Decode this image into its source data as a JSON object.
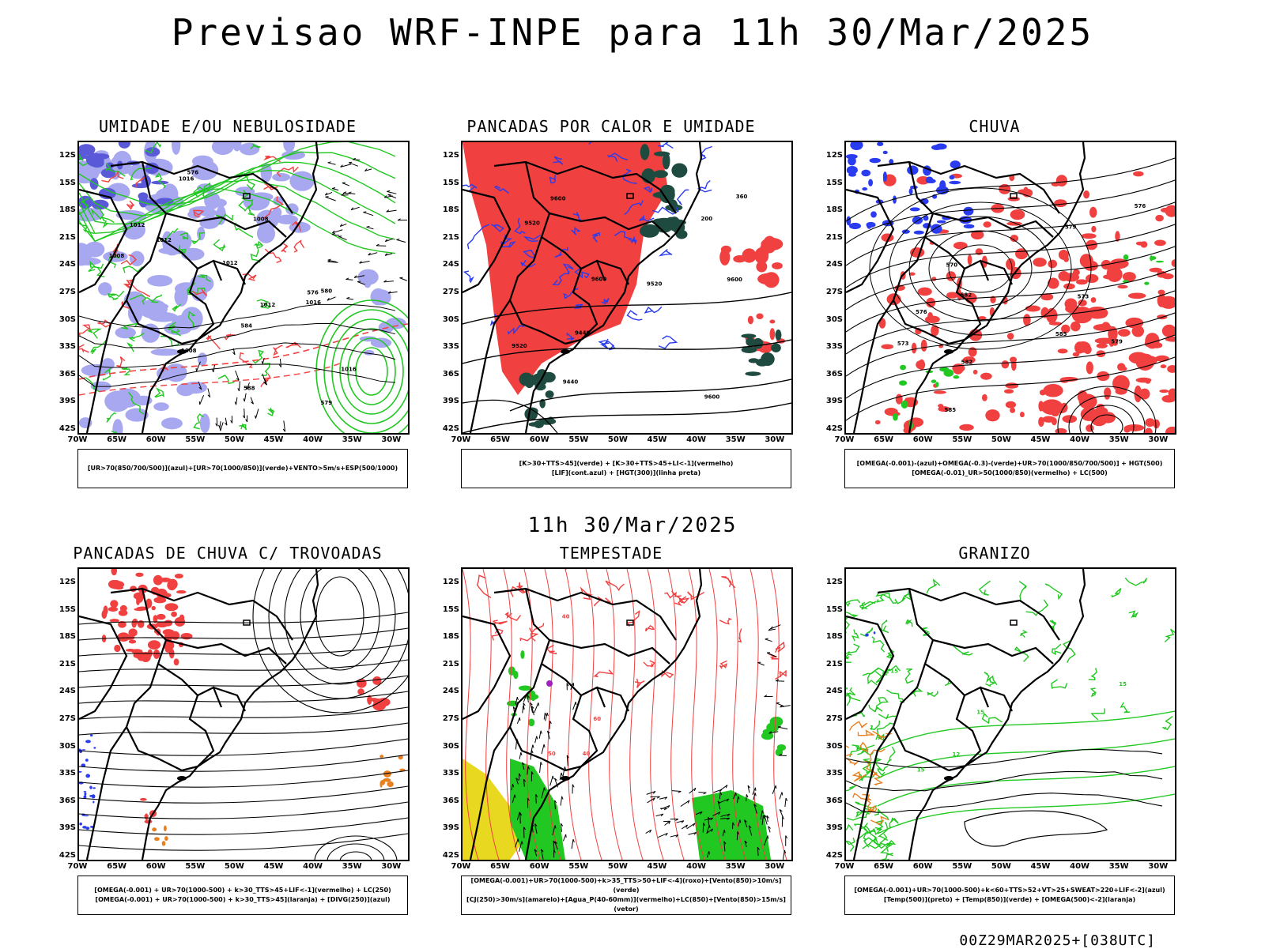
{
  "title": "Previsao WRF-INPE  para 11h 30/Mar/2025",
  "mid_date": "11h 30/Mar/2025",
  "footer": "00Z29MAR2025+[038UTC]",
  "latitudes": [
    "12S",
    "15S",
    "18S",
    "21S",
    "24S",
    "27S",
    "30S",
    "33S",
    "36S",
    "39S",
    "42S"
  ],
  "longitudes": [
    "70W",
    "65W",
    "60W",
    "55W",
    "50W",
    "45W",
    "40W",
    "35W",
    "30W"
  ],
  "panels": [
    {
      "id": "umidade",
      "title": "UMIDADE E/OU NEBULOSIDADE",
      "legend": [
        "[UR>70(850/700/500)](azul)+[UR>70(1000/850)](verde)+VENTO>5m/s+ESP(500/1000)"
      ],
      "contour_labels": [
        "1012",
        "1012",
        "1012",
        "1016",
        "1008",
        "1008",
        "1008",
        "1012",
        "1016",
        "1016",
        "576",
        "576",
        "579",
        "580",
        "584",
        "588"
      ]
    },
    {
      "id": "pancadas_calor",
      "title": "PANCADAS POR CALOR E UMIDADE",
      "legend": [
        "[K>30+TTS>45](verde) + [K>30+TTS>45+LI<-1](vermelho)",
        "[LIF](cont.azul) + [HGT(300)](linha preta)"
      ],
      "contour_labels": [
        "9600",
        "9600",
        "9600",
        "9600",
        "9520",
        "9520",
        "9520",
        "9440",
        "9440",
        "360",
        "200"
      ]
    },
    {
      "id": "chuva",
      "title": "CHUVA",
      "legend": [
        "[OMEGA(-0.001)-(azul)+OMEGA(-0.3)-(verde)+UR>70(1000/850/700/500)] + HGT(500)",
        "[OMEGA(-0.01)_UR>50(1000/850)(vermelho) + LC(500)"
      ],
      "contour_labels": [
        "585",
        "585",
        "582",
        "582",
        "579",
        "579",
        "576",
        "576",
        "573",
        "573",
        "570"
      ]
    },
    {
      "id": "pancadas_trovoadas",
      "title": "PANCADAS DE CHUVA C/ TROVOADAS",
      "legend": [
        "[OMEGA(-0.001) + UR>70(1000-500) + k>30_TTS>45+LIF<-1](vermelho) + LC(250)",
        "[OMEGA(-0.001) + UR>70(1000-500) + k>30_TTS>45](laranja) + [DIVG(250)](azul)"
      ],
      "contour_labels": []
    },
    {
      "id": "tempestade",
      "title": "TEMPESTADE",
      "legend": [
        "[OMEGA(-0.001)+UR>70(1000-500)+k>35_TTS>50+LIF<-4](roxo)+[Vento(850)>10m/s](verde)",
        "[CJ(250)>30m/s](amarelo)+[Agua_P(40-60mm)](vermelho)+LC(850)+[Vento(850)>15m/s](vetor)"
      ],
      "contour_labels": [
        "40",
        "40",
        "50",
        "60"
      ]
    },
    {
      "id": "granizo",
      "title": "GRANIZO",
      "legend": [
        "[OMEGA(-0.001)+UR>70(1000-500)+k<60+TTS>52+VT>25+SWEAT>220+LIF<-2](azul)",
        "[Temp(500)](preto) + [Temp(850)](verde) + [OMEGA(500)<-2](laranja)"
      ],
      "contour_labels": [
        "15",
        "15",
        "15",
        "15",
        "12"
      ]
    }
  ],
  "colors": {
    "red": "#f04040",
    "green": "#22c822",
    "blue": "#2a3cf0",
    "lavender": "#a8a8f0",
    "darkgreen": "#1e4a40",
    "yellow": "#e8d820",
    "orange": "#e88020",
    "purple": "#a020c0"
  }
}
